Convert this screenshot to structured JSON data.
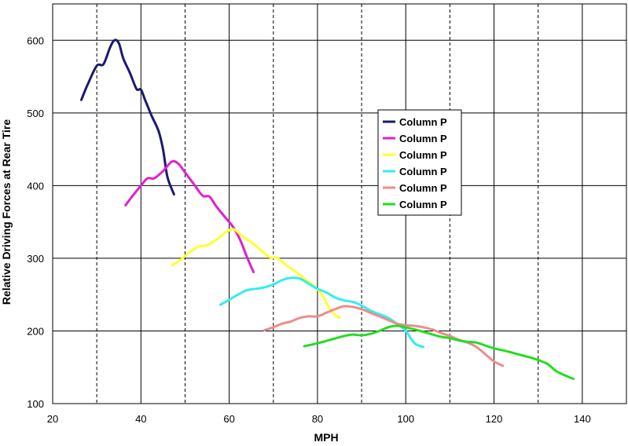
{
  "chart_data": {
    "type": "line",
    "title": "",
    "xlabel": "MPH",
    "ylabel": "Relative Driving Forces at Rear Tire",
    "xlim": [
      20,
      150
    ],
    "ylim": [
      100,
      650
    ],
    "xticks": [
      20,
      40,
      60,
      80,
      100,
      120,
      140
    ],
    "yticks": [
      100,
      200,
      300,
      400,
      500,
      600
    ],
    "grid": {
      "x_major_solid": [
        20,
        40,
        60,
        80,
        100,
        120,
        140
      ],
      "x_minor_dashed": [
        30,
        50,
        70,
        90,
        110,
        130,
        150
      ],
      "y_solid": [
        100,
        200,
        300,
        400,
        500,
        600
      ]
    },
    "legend_position": "center-right",
    "series": [
      {
        "name": "Column P",
        "color": "#1a1a6e",
        "points": [
          [
            26.5,
            518
          ],
          [
            28,
            540
          ],
          [
            30,
            565
          ],
          [
            31.5,
            567
          ],
          [
            33,
            590
          ],
          [
            34,
            600
          ],
          [
            35,
            596
          ],
          [
            36,
            575
          ],
          [
            37.5,
            555
          ],
          [
            39,
            533
          ],
          [
            40,
            532
          ],
          [
            41,
            517
          ],
          [
            42.5,
            495
          ],
          [
            44,
            475
          ],
          [
            45,
            450
          ],
          [
            46,
            412
          ],
          [
            47.5,
            388
          ]
        ]
      },
      {
        "name": "Column P",
        "color": "#e020d0",
        "points": [
          [
            36.5,
            373
          ],
          [
            38,
            385
          ],
          [
            40,
            400
          ],
          [
            41.5,
            410
          ],
          [
            43,
            410
          ],
          [
            45,
            420
          ],
          [
            47,
            433
          ],
          [
            48.5,
            430
          ],
          [
            50,
            418
          ],
          [
            52,
            402
          ],
          [
            54,
            386
          ],
          [
            55.5,
            385
          ],
          [
            57,
            372
          ],
          [
            59,
            357
          ],
          [
            61,
            342
          ],
          [
            62.5,
            325
          ],
          [
            64,
            302
          ],
          [
            65.5,
            281
          ]
        ]
      },
      {
        "name": "Column P",
        "color": "#ffff33",
        "points": [
          [
            47,
            290
          ],
          [
            49,
            298
          ],
          [
            51,
            308
          ],
          [
            53,
            316
          ],
          [
            55,
            318
          ],
          [
            57,
            325
          ],
          [
            59,
            335
          ],
          [
            61,
            340
          ],
          [
            63,
            330
          ],
          [
            65,
            322
          ],
          [
            67,
            312
          ],
          [
            69,
            302
          ],
          [
            71,
            300
          ],
          [
            73,
            290
          ],
          [
            75,
            282
          ],
          [
            77,
            272
          ],
          [
            79,
            263
          ],
          [
            81,
            250
          ],
          [
            83,
            228
          ],
          [
            85,
            218
          ]
        ]
      },
      {
        "name": "Column P",
        "color": "#33eeee",
        "points": [
          [
            58,
            236
          ],
          [
            60,
            243
          ],
          [
            62,
            250
          ],
          [
            64,
            256
          ],
          [
            66,
            258
          ],
          [
            68,
            260
          ],
          [
            70,
            264
          ],
          [
            72,
            270
          ],
          [
            74,
            273
          ],
          [
            76,
            272
          ],
          [
            78,
            265
          ],
          [
            80,
            258
          ],
          [
            82,
            253
          ],
          [
            84,
            246
          ],
          [
            86,
            242
          ],
          [
            88,
            240
          ],
          [
            90,
            235
          ],
          [
            92,
            228
          ],
          [
            94,
            223
          ],
          [
            96,
            218
          ],
          [
            98,
            210
          ],
          [
            100,
            200
          ],
          [
            102,
            183
          ],
          [
            104,
            178
          ]
        ]
      },
      {
        "name": "Column P",
        "color": "#ee8c8c",
        "points": [
          [
            68,
            201
          ],
          [
            70,
            205
          ],
          [
            72,
            210
          ],
          [
            74,
            213
          ],
          [
            76,
            218
          ],
          [
            78,
            220
          ],
          [
            80,
            220
          ],
          [
            82,
            225
          ],
          [
            84,
            230
          ],
          [
            86,
            234
          ],
          [
            88,
            233
          ],
          [
            90,
            230
          ],
          [
            92,
            225
          ],
          [
            94,
            220
          ],
          [
            96,
            215
          ],
          [
            98,
            210
          ],
          [
            100,
            208
          ],
          [
            102,
            207
          ],
          [
            104,
            205
          ],
          [
            106,
            202
          ],
          [
            108,
            197
          ],
          [
            110,
            193
          ],
          [
            112,
            188
          ],
          [
            114,
            184
          ],
          [
            116,
            178
          ],
          [
            118,
            168
          ],
          [
            120,
            158
          ],
          [
            122,
            152
          ]
        ]
      },
      {
        "name": "Column P",
        "color": "#22dd22",
        "points": [
          [
            77,
            179
          ],
          [
            80,
            183
          ],
          [
            83,
            188
          ],
          [
            86,
            193
          ],
          [
            88,
            195
          ],
          [
            90,
            194
          ],
          [
            92,
            196
          ],
          [
            94,
            200
          ],
          [
            96,
            205
          ],
          [
            98,
            207
          ],
          [
            100,
            205
          ],
          [
            102,
            202
          ],
          [
            105,
            197
          ],
          [
            108,
            192
          ],
          [
            110,
            190
          ],
          [
            112,
            187
          ],
          [
            114,
            185
          ],
          [
            116,
            184
          ],
          [
            118,
            180
          ],
          [
            120,
            176
          ],
          [
            123,
            172
          ],
          [
            126,
            167
          ],
          [
            129,
            162
          ],
          [
            132,
            155
          ],
          [
            134,
            145
          ],
          [
            136,
            139
          ],
          [
            138,
            134
          ]
        ]
      }
    ]
  }
}
